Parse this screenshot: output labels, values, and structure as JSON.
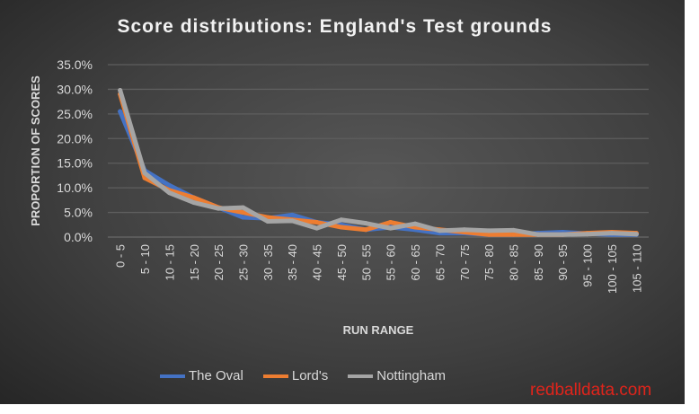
{
  "chart_data": {
    "type": "line",
    "title": "Score distributions: England's Test grounds",
    "xlabel": "RUN RANGE",
    "ylabel": "PROPORTION OF SCORES",
    "ylim": [
      0,
      35
    ],
    "yticks": [
      "0.0%",
      "5.0%",
      "10.0%",
      "15.0%",
      "20.0%",
      "25.0%",
      "30.0%",
      "35.0%"
    ],
    "grid": true,
    "legend_position": "bottom",
    "categories": [
      "0 - 5",
      "5 - 10",
      "10 - 15",
      "15 - 20",
      "20 - 25",
      "25 - 30",
      "30 - 35",
      "35 - 40",
      "40 - 45",
      "45 - 50",
      "50 - 55",
      "55 - 60",
      "60 - 65",
      "65 - 70",
      "70 - 75",
      "75 - 80",
      "80 - 85",
      "85 - 90",
      "90 - 95",
      "95 - 100",
      "100 - 105",
      "105 - 110"
    ],
    "series": [
      {
        "name": "The Oval",
        "color": "#4472c4",
        "values": [
          25.5,
          13.5,
          10.5,
          8,
          6,
          4,
          3.8,
          4.5,
          3,
          2.5,
          1.5,
          2,
          1.5,
          0.8,
          0.8,
          0.5,
          0.5,
          0.8,
          1,
          0.7,
          0.5,
          0.5
        ]
      },
      {
        "name": "Lord's",
        "color": "#ed7d31",
        "values": [
          29,
          12,
          9.5,
          8,
          6,
          5,
          4,
          3.5,
          3,
          2,
          1.5,
          3,
          2,
          1.5,
          1,
          0.5,
          0.5,
          0.5,
          0.5,
          0.8,
          1,
          0.8
        ]
      },
      {
        "name": "Nottingham",
        "color": "#a5a5a5",
        "values": [
          29.8,
          13,
          9,
          7,
          5.8,
          6,
          3.2,
          3.3,
          1.8,
          3.5,
          2.8,
          1.8,
          2.7,
          1.3,
          1.5,
          1.3,
          1.4,
          0.5,
          0.5,
          0.6,
          0.8,
          0.6
        ]
      }
    ]
  },
  "watermark": "redballdata.com"
}
